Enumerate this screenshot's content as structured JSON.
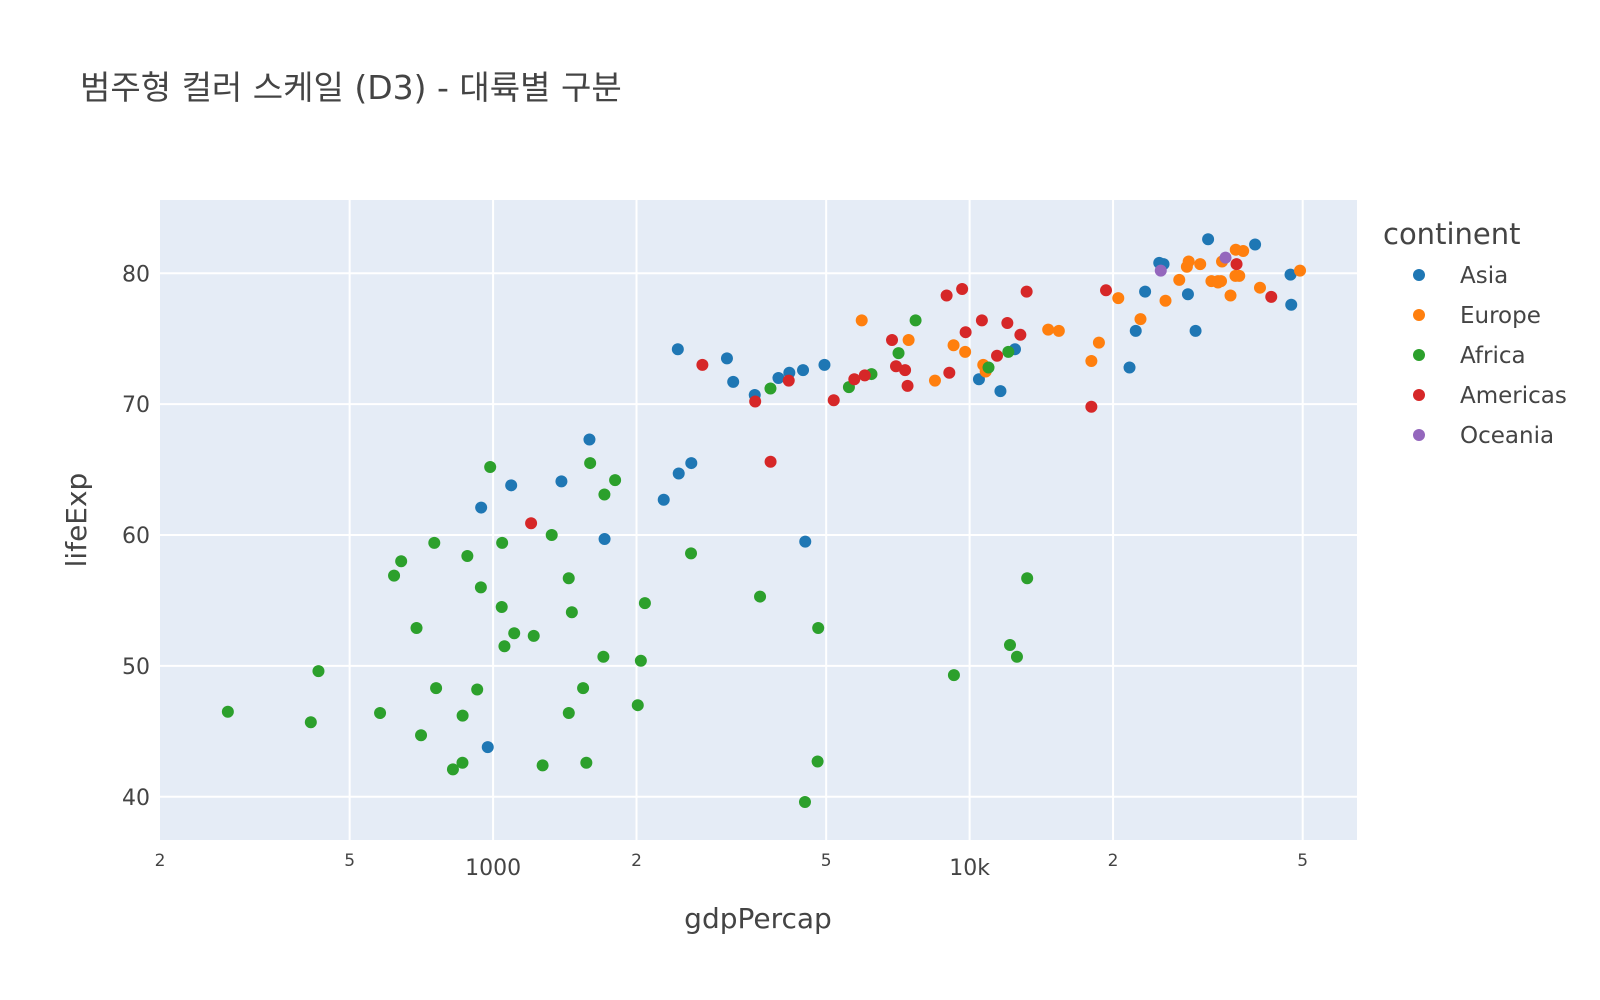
{
  "chart_data": {
    "type": "scatter",
    "title": "범주형 컬러 스케일 (D3) - 대륙별 구분",
    "xlabel": "gdpPercap",
    "ylabel": "lifeExp",
    "x_scale": "log",
    "xlim": [
      200,
      65000
    ],
    "ylim": [
      36.7,
      85.6
    ],
    "grid": true,
    "x_ticks": [
      {
        "value": 200,
        "label": "2",
        "major": false
      },
      {
        "value": 500,
        "label": "5",
        "major": false
      },
      {
        "value": 1000,
        "label": "1000",
        "major": true
      },
      {
        "value": 2000,
        "label": "2",
        "major": false
      },
      {
        "value": 5000,
        "label": "5",
        "major": false
      },
      {
        "value": 10000,
        "label": "10k",
        "major": true
      },
      {
        "value": 20000,
        "label": "2",
        "major": false
      },
      {
        "value": 50000,
        "label": "5",
        "major": false
      }
    ],
    "y_ticks": [
      {
        "value": 40,
        "label": "40"
      },
      {
        "value": 50,
        "label": "50"
      },
      {
        "value": 60,
        "label": "60"
      },
      {
        "value": 70,
        "label": "70"
      },
      {
        "value": 80,
        "label": "80"
      }
    ],
    "legend": {
      "title": "continent",
      "position": "top-right"
    },
    "series": [
      {
        "name": "Asia",
        "color": "#1f77b4",
        "points": [
          [
            974.6,
            43.8
          ],
          [
            29796.0,
            75.6
          ],
          [
            1391.3,
            64.1
          ],
          [
            1713.8,
            59.7
          ],
          [
            4959.1,
            73.0
          ],
          [
            39725.0,
            82.2
          ],
          [
            2452.2,
            64.7
          ],
          [
            3540.7,
            70.7
          ],
          [
            3190.5,
            71.7
          ],
          [
            21655.0,
            72.8
          ],
          [
            25523.0,
            80.7
          ],
          [
            31656.0,
            82.6
          ],
          [
            47307.0,
            77.6
          ],
          [
            4519.5,
            59.5
          ],
          [
            1091.4,
            63.8
          ],
          [
            2605.9,
            65.5
          ],
          [
            3095.8,
            73.5
          ],
          [
            2280.8,
            62.7
          ],
          [
            28718.0,
            78.4
          ],
          [
            944.0,
            62.1
          ],
          [
            1593.1,
            67.3
          ],
          [
            23348.0,
            78.6
          ],
          [
            22316.0,
            75.6
          ],
          [
            11606.0,
            71.0
          ],
          [
            12451.0,
            74.2
          ],
          [
            2441.6,
            74.2
          ],
          [
            10461.0,
            71.9
          ],
          [
            47143.0,
            79.9
          ],
          [
            4184.5,
            72.4
          ],
          [
            3970.1,
            72.0
          ],
          [
            4471.1,
            72.6
          ],
          [
            25000.0,
            80.8
          ]
        ]
      },
      {
        "name": "Europe",
        "color": "#ff7f0e",
        "points": [
          [
            5937.0,
            76.4
          ],
          [
            36126.0,
            79.8
          ],
          [
            33692.0,
            79.4
          ],
          [
            7446.9,
            74.9
          ],
          [
            10681.0,
            73.0
          ],
          [
            14619.0,
            75.7
          ],
          [
            22833.0,
            76.5
          ],
          [
            35278.0,
            78.3
          ],
          [
            33207.0,
            79.3
          ],
          [
            30470.0,
            80.7
          ],
          [
            32170.0,
            79.4
          ],
          [
            27538.0,
            79.5
          ],
          [
            18009.0,
            73.3
          ],
          [
            36181.0,
            81.8
          ],
          [
            40676.0,
            78.9
          ],
          [
            28570.0,
            80.5
          ],
          [
            9253.9,
            74.5
          ],
          [
            36798.0,
            79.8
          ],
          [
            49357.0,
            80.2
          ],
          [
            15390.0,
            75.6
          ],
          [
            20510.0,
            78.1
          ],
          [
            10808.0,
            72.5
          ],
          [
            9786.5,
            74.0
          ],
          [
            25768.0,
            77.9
          ],
          [
            18678.0,
            74.7
          ],
          [
            28821.0,
            80.9
          ],
          [
            33860.0,
            80.9
          ],
          [
            37506.0,
            81.7
          ],
          [
            8458.3,
            71.8
          ],
          [
            33203.0,
            79.4
          ]
        ]
      },
      {
        "name": "Africa",
        "color": "#2ca02c",
        "points": [
          [
            6223.4,
            72.3
          ],
          [
            4797.2,
            42.7
          ],
          [
            1441.3,
            56.7
          ],
          [
            12570.0,
            50.7
          ],
          [
            1217.0,
            52.3
          ],
          [
            430.1,
            49.6
          ],
          [
            2042.1,
            50.4
          ],
          [
            706.0,
            44.7
          ],
          [
            1704.1,
            50.7
          ],
          [
            986.1,
            65.2
          ],
          [
            277.6,
            46.5
          ],
          [
            3632.6,
            55.3
          ],
          [
            1544.8,
            48.3
          ],
          [
            2082.5,
            54.8
          ],
          [
            5581.2,
            71.3
          ],
          [
            12154.0,
            51.6
          ],
          [
            641.4,
            58.0
          ],
          [
            690.8,
            52.9
          ],
          [
            13206.0,
            56.7
          ],
          [
            752.7,
            59.4
          ],
          [
            1327.5,
            60.0
          ],
          [
            942.7,
            56.0
          ],
          [
            579.2,
            46.4
          ],
          [
            1463.2,
            54.1
          ],
          [
            1569.3,
            42.6
          ],
          [
            414.5,
            45.7
          ],
          [
            12057.0,
            74.0
          ],
          [
            1044.8,
            59.4
          ],
          [
            759.3,
            48.3
          ],
          [
            1042.6,
            54.5
          ],
          [
            1803.2,
            64.2
          ],
          [
            7092.9,
            73.9
          ],
          [
            823.7,
            42.1
          ],
          [
            4811.1,
            52.9
          ],
          [
            619.7,
            56.9
          ],
          [
            1441.7,
            46.4
          ],
          [
            863.1,
            46.2
          ],
          [
            1598.4,
            65.5
          ],
          [
            1712.5,
            63.1
          ],
          [
            862.5,
            42.6
          ],
          [
            926.1,
            48.2
          ],
          [
            9269.7,
            49.3
          ],
          [
            2602.4,
            58.6
          ],
          [
            4513.5,
            39.6
          ],
          [
            2012.0,
            47.0
          ],
          [
            1107.5,
            52.5
          ],
          [
            7702.0,
            76.4
          ],
          [
            1056.4,
            51.5
          ],
          [
            883.1,
            58.4
          ],
          [
            3820.2,
            71.2
          ],
          [
            1270.4,
            42.4
          ],
          [
            10956.0,
            72.8
          ]
        ]
      },
      {
        "name": "Americas",
        "color": "#d62728",
        "points": [
          [
            12779.0,
            75.3
          ],
          [
            3822.1,
            65.6
          ],
          [
            9065.8,
            72.4
          ],
          [
            36319.0,
            80.7
          ],
          [
            13172.0,
            78.6
          ],
          [
            7006.6,
            72.9
          ],
          [
            9645.1,
            78.8
          ],
          [
            8948.1,
            78.3
          ],
          [
            6025.4,
            72.2
          ],
          [
            6873.3,
            74.9
          ],
          [
            5728.4,
            71.9
          ],
          [
            5186.1,
            70.3
          ],
          [
            4172.8,
            71.8
          ],
          [
            1201.6,
            60.9
          ],
          [
            3548.3,
            70.2
          ],
          [
            7321.0,
            72.6
          ],
          [
            2749.3,
            73.0
          ],
          [
            9809.2,
            75.5
          ],
          [
            7408.9,
            71.4
          ],
          [
            19329.0,
            78.7
          ],
          [
            18009.0,
            69.8
          ],
          [
            42952.0,
            78.2
          ],
          [
            10611.0,
            76.4
          ],
          [
            11416.0,
            73.7
          ],
          [
            12000.0,
            76.2
          ]
        ]
      },
      {
        "name": "Oceania",
        "color": "#9467bd",
        "points": [
          [
            34435.0,
            81.2
          ],
          [
            25185.0,
            80.2
          ]
        ]
      }
    ]
  }
}
